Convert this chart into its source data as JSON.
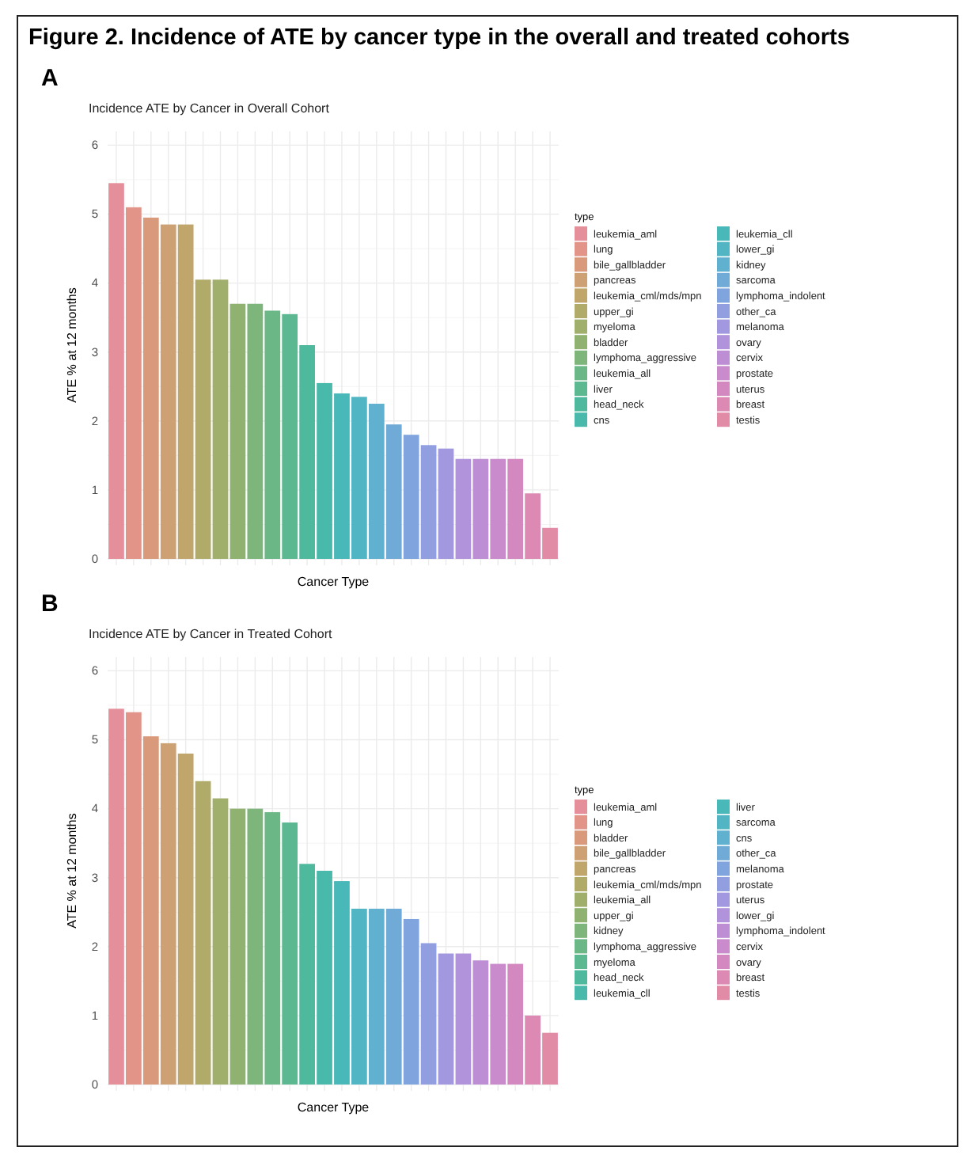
{
  "chart_data": [
    {
      "type": "bar",
      "title": "Incidence ATE by Cancer in Overall Cohort",
      "annotations": [
        "Figure 2. Incidence of ATE by cancer type in the overall and treated cohorts",
        "A"
      ],
      "xlabel": "Cancer Type",
      "ylabel": "ATE % at 12 months",
      "legend_title": "type",
      "legend": "right",
      "grid": true,
      "tick_labels": "y",
      "ylim": [
        0,
        6.2
      ],
      "yticks": [
        0,
        1,
        2,
        3,
        4,
        5,
        6
      ],
      "categories": [
        null,
        null,
        null,
        null,
        null,
        null,
        null,
        null,
        null,
        null,
        null,
        null,
        null,
        null,
        null,
        null,
        null,
        null,
        null,
        null,
        null,
        null,
        null,
        null,
        null,
        null
      ],
      "series": [
        {
          "name": "leukemia_aml",
          "color": "#e58f9a",
          "values": [
            5.45,
            null,
            null,
            null,
            null,
            null,
            null,
            null,
            null,
            null,
            null,
            null,
            null,
            null,
            null,
            null,
            null,
            null,
            null,
            null,
            null,
            null,
            null,
            null,
            null,
            null
          ]
        },
        {
          "name": "lung",
          "color": "#e29488",
          "values": [
            null,
            5.1,
            null,
            null,
            null,
            null,
            null,
            null,
            null,
            null,
            null,
            null,
            null,
            null,
            null,
            null,
            null,
            null,
            null,
            null,
            null,
            null,
            null,
            null,
            null,
            null
          ]
        },
        {
          "name": "bile_gallbladder",
          "color": "#d99a7c",
          "values": [
            null,
            null,
            4.95,
            null,
            null,
            null,
            null,
            null,
            null,
            null,
            null,
            null,
            null,
            null,
            null,
            null,
            null,
            null,
            null,
            null,
            null,
            null,
            null,
            null,
            null,
            null
          ]
        },
        {
          "name": "pancreas",
          "color": "#cda173",
          "values": [
            null,
            null,
            null,
            4.85,
            null,
            null,
            null,
            null,
            null,
            null,
            null,
            null,
            null,
            null,
            null,
            null,
            null,
            null,
            null,
            null,
            null,
            null,
            null,
            null,
            null,
            null
          ]
        },
        {
          "name": "leukemia_cml/mds/mpn",
          "color": "#c0a66b",
          "values": [
            null,
            null,
            null,
            null,
            4.85,
            null,
            null,
            null,
            null,
            null,
            null,
            null,
            null,
            null,
            null,
            null,
            null,
            null,
            null,
            null,
            null,
            null,
            null,
            null,
            null,
            null
          ]
        },
        {
          "name": "upper_gi",
          "color": "#b1ab69",
          "values": [
            null,
            null,
            null,
            null,
            null,
            4.05,
            null,
            null,
            null,
            null,
            null,
            null,
            null,
            null,
            null,
            null,
            null,
            null,
            null,
            null,
            null,
            null,
            null,
            null,
            null,
            null
          ]
        },
        {
          "name": "myeloma",
          "color": "#a0af6b",
          "values": [
            null,
            null,
            null,
            null,
            null,
            null,
            4.05,
            null,
            null,
            null,
            null,
            null,
            null,
            null,
            null,
            null,
            null,
            null,
            null,
            null,
            null,
            null,
            null,
            null,
            null,
            null
          ]
        },
        {
          "name": "bladder",
          "color": "#8fb271",
          "values": [
            null,
            null,
            null,
            null,
            null,
            null,
            null,
            3.7,
            null,
            null,
            null,
            null,
            null,
            null,
            null,
            null,
            null,
            null,
            null,
            null,
            null,
            null,
            null,
            null,
            null,
            null
          ]
        },
        {
          "name": "lymphoma_aggressive",
          "color": "#7db57a",
          "values": [
            null,
            null,
            null,
            null,
            null,
            null,
            null,
            null,
            3.7,
            null,
            null,
            null,
            null,
            null,
            null,
            null,
            null,
            null,
            null,
            null,
            null,
            null,
            null,
            null,
            null,
            null
          ]
        },
        {
          "name": "leukemia_all",
          "color": "#6bb785",
          "values": [
            null,
            null,
            null,
            null,
            null,
            null,
            null,
            null,
            null,
            3.6,
            null,
            null,
            null,
            null,
            null,
            null,
            null,
            null,
            null,
            null,
            null,
            null,
            null,
            null,
            null,
            null
          ]
        },
        {
          "name": "liver",
          "color": "#5cb891",
          "values": [
            null,
            null,
            null,
            null,
            null,
            null,
            null,
            null,
            null,
            null,
            3.55,
            null,
            null,
            null,
            null,
            null,
            null,
            null,
            null,
            null,
            null,
            null,
            null,
            null,
            null,
            null
          ]
        },
        {
          "name": "head_neck",
          "color": "#4fb99e",
          "values": [
            null,
            null,
            null,
            null,
            null,
            null,
            null,
            null,
            null,
            null,
            null,
            3.1,
            null,
            null,
            null,
            null,
            null,
            null,
            null,
            null,
            null,
            null,
            null,
            null,
            null,
            null
          ]
        },
        {
          "name": "cns",
          "color": "#48b9ab",
          "values": [
            null,
            null,
            null,
            null,
            null,
            null,
            null,
            null,
            null,
            null,
            null,
            null,
            2.55,
            null,
            null,
            null,
            null,
            null,
            null,
            null,
            null,
            null,
            null,
            null,
            null,
            null
          ]
        },
        {
          "name": "leukemia_cll",
          "color": "#49b8b8",
          "values": [
            null,
            null,
            null,
            null,
            null,
            null,
            null,
            null,
            null,
            null,
            null,
            null,
            null,
            2.4,
            null,
            null,
            null,
            null,
            null,
            null,
            null,
            null,
            null,
            null,
            null,
            null
          ]
        },
        {
          "name": "lower_gi",
          "color": "#52b5c4",
          "values": [
            null,
            null,
            null,
            null,
            null,
            null,
            null,
            null,
            null,
            null,
            null,
            null,
            null,
            null,
            2.35,
            null,
            null,
            null,
            null,
            null,
            null,
            null,
            null,
            null,
            null,
            null
          ]
        },
        {
          "name": "kidney",
          "color": "#5fb1cf",
          "values": [
            null,
            null,
            null,
            null,
            null,
            null,
            null,
            null,
            null,
            null,
            null,
            null,
            null,
            null,
            null,
            2.25,
            null,
            null,
            null,
            null,
            null,
            null,
            null,
            null,
            null,
            null
          ]
        },
        {
          "name": "sarcoma",
          "color": "#70aad7",
          "values": [
            null,
            null,
            null,
            null,
            null,
            null,
            null,
            null,
            null,
            null,
            null,
            null,
            null,
            null,
            null,
            null,
            1.95,
            null,
            null,
            null,
            null,
            null,
            null,
            null,
            null,
            null
          ]
        },
        {
          "name": "lymphoma_indolent",
          "color": "#80a4dd",
          "values": [
            null,
            null,
            null,
            null,
            null,
            null,
            null,
            null,
            null,
            null,
            null,
            null,
            null,
            null,
            null,
            null,
            null,
            1.8,
            null,
            null,
            null,
            null,
            null,
            null,
            null,
            null
          ]
        },
        {
          "name": "other_ca",
          "color": "#919ee0",
          "values": [
            null,
            null,
            null,
            null,
            null,
            null,
            null,
            null,
            null,
            null,
            null,
            null,
            null,
            null,
            null,
            null,
            null,
            null,
            1.65,
            null,
            null,
            null,
            null,
            null,
            null,
            null
          ]
        },
        {
          "name": "melanoma",
          "color": "#a198df",
          "values": [
            null,
            null,
            null,
            null,
            null,
            null,
            null,
            null,
            null,
            null,
            null,
            null,
            null,
            null,
            null,
            null,
            null,
            null,
            null,
            1.6,
            null,
            null,
            null,
            null,
            null,
            null
          ]
        },
        {
          "name": "ovary",
          "color": "#b093db",
          "values": [
            null,
            null,
            null,
            null,
            null,
            null,
            null,
            null,
            null,
            null,
            null,
            null,
            null,
            null,
            null,
            null,
            null,
            null,
            null,
            null,
            1.45,
            null,
            null,
            null,
            null,
            null
          ]
        },
        {
          "name": "cervix",
          "color": "#bd8ed4",
          "values": [
            null,
            null,
            null,
            null,
            null,
            null,
            null,
            null,
            null,
            null,
            null,
            null,
            null,
            null,
            null,
            null,
            null,
            null,
            null,
            null,
            null,
            1.45,
            null,
            null,
            null,
            null
          ]
        },
        {
          "name": "prostate",
          "color": "#c98bcb",
          "values": [
            null,
            null,
            null,
            null,
            null,
            null,
            null,
            null,
            null,
            null,
            null,
            null,
            null,
            null,
            null,
            null,
            null,
            null,
            null,
            null,
            null,
            null,
            1.45,
            null,
            null,
            null
          ]
        },
        {
          "name": "uterus",
          "color": "#d389c0",
          "values": [
            null,
            null,
            null,
            null,
            null,
            null,
            null,
            null,
            null,
            null,
            null,
            null,
            null,
            null,
            null,
            null,
            null,
            null,
            null,
            null,
            null,
            null,
            null,
            1.45,
            null,
            null
          ]
        },
        {
          "name": "breast",
          "color": "#dc89b3",
          "values": [
            null,
            null,
            null,
            null,
            null,
            null,
            null,
            null,
            null,
            null,
            null,
            null,
            null,
            null,
            null,
            null,
            null,
            null,
            null,
            null,
            null,
            null,
            null,
            null,
            0.95,
            null
          ]
        },
        {
          "name": "testis",
          "color": "#e28ba7",
          "values": [
            null,
            null,
            null,
            null,
            null,
            null,
            null,
            null,
            null,
            null,
            null,
            null,
            null,
            null,
            null,
            null,
            null,
            null,
            null,
            null,
            null,
            null,
            null,
            null,
            null,
            0.45
          ]
        }
      ]
    },
    {
      "type": "bar",
      "title": "Incidence ATE by Cancer in Treated Cohort",
      "annotations": [
        "B"
      ],
      "xlabel": "Cancer Type",
      "ylabel": "ATE % at 12 months",
      "legend_title": "type",
      "legend": "right",
      "grid": true,
      "tick_labels": "y",
      "ylim": [
        0,
        6.2
      ],
      "yticks": [
        0,
        1,
        2,
        3,
        4,
        5,
        6
      ],
      "categories": [
        null,
        null,
        null,
        null,
        null,
        null,
        null,
        null,
        null,
        null,
        null,
        null,
        null,
        null,
        null,
        null,
        null,
        null,
        null,
        null,
        null,
        null,
        null,
        null,
        null,
        null
      ],
      "series": [
        {
          "name": "leukemia_aml",
          "color": "#e58f9a",
          "values": [
            5.45,
            null,
            null,
            null,
            null,
            null,
            null,
            null,
            null,
            null,
            null,
            null,
            null,
            null,
            null,
            null,
            null,
            null,
            null,
            null,
            null,
            null,
            null,
            null,
            null,
            null
          ]
        },
        {
          "name": "lung",
          "color": "#e29488",
          "values": [
            null,
            5.4,
            null,
            null,
            null,
            null,
            null,
            null,
            null,
            null,
            null,
            null,
            null,
            null,
            null,
            null,
            null,
            null,
            null,
            null,
            null,
            null,
            null,
            null,
            null,
            null
          ]
        },
        {
          "name": "bladder",
          "color": "#d99a7c",
          "values": [
            null,
            null,
            5.05,
            null,
            null,
            null,
            null,
            null,
            null,
            null,
            null,
            null,
            null,
            null,
            null,
            null,
            null,
            null,
            null,
            null,
            null,
            null,
            null,
            null,
            null,
            null
          ]
        },
        {
          "name": "bile_gallbladder",
          "color": "#cda173",
          "values": [
            null,
            null,
            null,
            4.95,
            null,
            null,
            null,
            null,
            null,
            null,
            null,
            null,
            null,
            null,
            null,
            null,
            null,
            null,
            null,
            null,
            null,
            null,
            null,
            null,
            null,
            null
          ]
        },
        {
          "name": "pancreas",
          "color": "#c0a66b",
          "values": [
            null,
            null,
            null,
            null,
            4.8,
            null,
            null,
            null,
            null,
            null,
            null,
            null,
            null,
            null,
            null,
            null,
            null,
            null,
            null,
            null,
            null,
            null,
            null,
            null,
            null,
            null
          ]
        },
        {
          "name": "leukemia_cml/mds/mpn",
          "color": "#b1ab69",
          "values": [
            null,
            null,
            null,
            null,
            null,
            4.4,
            null,
            null,
            null,
            null,
            null,
            null,
            null,
            null,
            null,
            null,
            null,
            null,
            null,
            null,
            null,
            null,
            null,
            null,
            null,
            null
          ]
        },
        {
          "name": "leukemia_all",
          "color": "#a0af6b",
          "values": [
            null,
            null,
            null,
            null,
            null,
            null,
            4.15,
            null,
            null,
            null,
            null,
            null,
            null,
            null,
            null,
            null,
            null,
            null,
            null,
            null,
            null,
            null,
            null,
            null,
            null,
            null
          ]
        },
        {
          "name": "upper_gi",
          "color": "#8fb271",
          "values": [
            null,
            null,
            null,
            null,
            null,
            null,
            null,
            4.0,
            null,
            null,
            null,
            null,
            null,
            null,
            null,
            null,
            null,
            null,
            null,
            null,
            null,
            null,
            null,
            null,
            null,
            null
          ]
        },
        {
          "name": "kidney",
          "color": "#7db57a",
          "values": [
            null,
            null,
            null,
            null,
            null,
            null,
            null,
            null,
            4.0,
            null,
            null,
            null,
            null,
            null,
            null,
            null,
            null,
            null,
            null,
            null,
            null,
            null,
            null,
            null,
            null,
            null
          ]
        },
        {
          "name": "lymphoma_aggressive",
          "color": "#6bb785",
          "values": [
            null,
            null,
            null,
            null,
            null,
            null,
            null,
            null,
            null,
            3.95,
            null,
            null,
            null,
            null,
            null,
            null,
            null,
            null,
            null,
            null,
            null,
            null,
            null,
            null,
            null,
            null
          ]
        },
        {
          "name": "myeloma",
          "color": "#5cb891",
          "values": [
            null,
            null,
            null,
            null,
            null,
            null,
            null,
            null,
            null,
            null,
            3.8,
            null,
            null,
            null,
            null,
            null,
            null,
            null,
            null,
            null,
            null,
            null,
            null,
            null,
            null,
            null
          ]
        },
        {
          "name": "head_neck",
          "color": "#4fb99e",
          "values": [
            null,
            null,
            null,
            null,
            null,
            null,
            null,
            null,
            null,
            null,
            null,
            3.2,
            null,
            null,
            null,
            null,
            null,
            null,
            null,
            null,
            null,
            null,
            null,
            null,
            null,
            null
          ]
        },
        {
          "name": "leukemia_cll",
          "color": "#48b9ab",
          "values": [
            null,
            null,
            null,
            null,
            null,
            null,
            null,
            null,
            null,
            null,
            null,
            null,
            3.1,
            null,
            null,
            null,
            null,
            null,
            null,
            null,
            null,
            null,
            null,
            null,
            null,
            null
          ]
        },
        {
          "name": "liver",
          "color": "#49b8b8",
          "values": [
            null,
            null,
            null,
            null,
            null,
            null,
            null,
            null,
            null,
            null,
            null,
            null,
            null,
            2.95,
            null,
            null,
            null,
            null,
            null,
            null,
            null,
            null,
            null,
            null,
            null,
            null
          ]
        },
        {
          "name": "sarcoma",
          "color": "#52b5c4",
          "values": [
            null,
            null,
            null,
            null,
            null,
            null,
            null,
            null,
            null,
            null,
            null,
            null,
            null,
            null,
            2.55,
            null,
            null,
            null,
            null,
            null,
            null,
            null,
            null,
            null,
            null,
            null
          ]
        },
        {
          "name": "cns",
          "color": "#5fb1cf",
          "values": [
            null,
            null,
            null,
            null,
            null,
            null,
            null,
            null,
            null,
            null,
            null,
            null,
            null,
            null,
            null,
            2.55,
            null,
            null,
            null,
            null,
            null,
            null,
            null,
            null,
            null,
            null
          ]
        },
        {
          "name": "other_ca",
          "color": "#70aad7",
          "values": [
            null,
            null,
            null,
            null,
            null,
            null,
            null,
            null,
            null,
            null,
            null,
            null,
            null,
            null,
            null,
            null,
            2.55,
            null,
            null,
            null,
            null,
            null,
            null,
            null,
            null,
            null
          ]
        },
        {
          "name": "melanoma",
          "color": "#80a4dd",
          "values": [
            null,
            null,
            null,
            null,
            null,
            null,
            null,
            null,
            null,
            null,
            null,
            null,
            null,
            null,
            null,
            null,
            null,
            2.4,
            null,
            null,
            null,
            null,
            null,
            null,
            null,
            null
          ]
        },
        {
          "name": "prostate",
          "color": "#919ee0",
          "values": [
            null,
            null,
            null,
            null,
            null,
            null,
            null,
            null,
            null,
            null,
            null,
            null,
            null,
            null,
            null,
            null,
            null,
            null,
            2.05,
            null,
            null,
            null,
            null,
            null,
            null,
            null
          ]
        },
        {
          "name": "uterus",
          "color": "#a198df",
          "values": [
            null,
            null,
            null,
            null,
            null,
            null,
            null,
            null,
            null,
            null,
            null,
            null,
            null,
            null,
            null,
            null,
            null,
            null,
            null,
            1.9,
            null,
            null,
            null,
            null,
            null,
            null
          ]
        },
        {
          "name": "lower_gi",
          "color": "#b093db",
          "values": [
            null,
            null,
            null,
            null,
            null,
            null,
            null,
            null,
            null,
            null,
            null,
            null,
            null,
            null,
            null,
            null,
            null,
            null,
            null,
            null,
            1.9,
            null,
            null,
            null,
            null,
            null
          ]
        },
        {
          "name": "lymphoma_indolent",
          "color": "#bd8ed4",
          "values": [
            null,
            null,
            null,
            null,
            null,
            null,
            null,
            null,
            null,
            null,
            null,
            null,
            null,
            null,
            null,
            null,
            null,
            null,
            null,
            null,
            null,
            1.8,
            null,
            null,
            null,
            null
          ]
        },
        {
          "name": "cervix",
          "color": "#c98bcb",
          "values": [
            null,
            null,
            null,
            null,
            null,
            null,
            null,
            null,
            null,
            null,
            null,
            null,
            null,
            null,
            null,
            null,
            null,
            null,
            null,
            null,
            null,
            null,
            1.75,
            null,
            null,
            null
          ]
        },
        {
          "name": "ovary",
          "color": "#d389c0",
          "values": [
            null,
            null,
            null,
            null,
            null,
            null,
            null,
            null,
            null,
            null,
            null,
            null,
            null,
            null,
            null,
            null,
            null,
            null,
            null,
            null,
            null,
            null,
            null,
            1.75,
            null,
            null
          ]
        },
        {
          "name": "breast",
          "color": "#dc89b3",
          "values": [
            null,
            null,
            null,
            null,
            null,
            null,
            null,
            null,
            null,
            null,
            null,
            null,
            null,
            null,
            null,
            null,
            null,
            null,
            null,
            null,
            null,
            null,
            null,
            null,
            1.0,
            null
          ]
        },
        {
          "name": "testis",
          "color": "#e28ba7",
          "values": [
            null,
            null,
            null,
            null,
            null,
            null,
            null,
            null,
            null,
            null,
            null,
            null,
            null,
            null,
            null,
            null,
            null,
            null,
            null,
            null,
            null,
            null,
            null,
            null,
            null,
            0.75
          ]
        }
      ]
    }
  ]
}
